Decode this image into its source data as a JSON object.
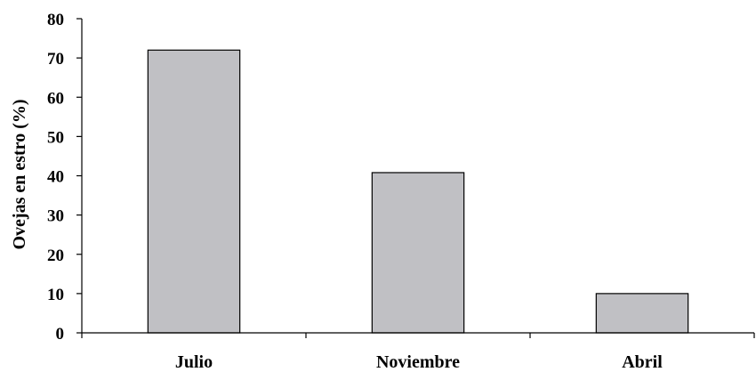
{
  "chart_data": {
    "type": "bar",
    "title": "",
    "xlabel": "",
    "ylabel": "Ovejas en estro (%)",
    "categories": [
      "Julio",
      "Noviembre",
      "Abril"
    ],
    "values": [
      72,
      40.8,
      10
    ],
    "ylim": [
      0,
      80
    ],
    "yticks": [
      0,
      10,
      20,
      30,
      40,
      50,
      60,
      70,
      80
    ],
    "grid": false,
    "legend": "none",
    "bar_color": "#c0c0c4",
    "edge_color": "#000000"
  }
}
